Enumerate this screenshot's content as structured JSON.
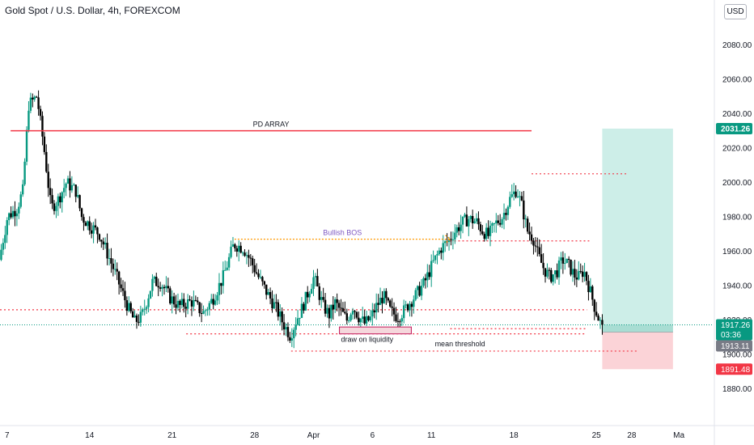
{
  "header": {
    "title": "Gold Spot / U.S. Dollar, 4h, FOREXCOM",
    "currency_button": "USD"
  },
  "colors": {
    "up": "#089981",
    "down": "#000000",
    "wick_up": "#089981",
    "wick_down": "#000000",
    "red_line": "#f23645",
    "orange": "#ff9800",
    "purple": "#7e57c2",
    "tp_fill": "#cdeee8",
    "sl_fill": "#fbd3d7",
    "green_tag": "#089981",
    "gray_tag": "#787b86",
    "red_tag": "#f23645"
  },
  "chart_data": {
    "type": "candlestick",
    "symbol": "Gold Spot / U.S. Dollar",
    "interval": "4h",
    "exchange": "FOREXCOM",
    "ylim": [
      1870,
      2090
    ],
    "y_ticks": [
      1880,
      1900,
      1920,
      1940,
      1960,
      1980,
      2000,
      2020,
      2040,
      2060,
      2080
    ],
    "y_tick_labels": [
      "1880.00",
      "1900.00",
      "1920.00",
      "1940.00",
      "1960.00",
      "1980.00",
      "2000.00",
      "2020.00",
      "2040.00",
      "2060.00",
      "2080.00"
    ],
    "x_ticks": [
      {
        "day": 7,
        "label": "7"
      },
      {
        "day": 14,
        "label": "14"
      },
      {
        "day": 21,
        "label": "21"
      },
      {
        "day": 28,
        "label": "28"
      },
      {
        "day": 33,
        "label": "Apr"
      },
      {
        "day": 38,
        "label": "6"
      },
      {
        "day": 43,
        "label": "11"
      },
      {
        "day": 50,
        "label": "18"
      },
      {
        "day": 57,
        "label": "25"
      },
      {
        "day": 60,
        "label": "28"
      },
      {
        "day": 64,
        "label": "Ma"
      }
    ],
    "xlim_days": [
      6.4,
      66.6
    ],
    "last_candle_day": 57.6,
    "candle_anchors": [
      [
        6.5,
        1955
      ],
      [
        7.2,
        1980
      ],
      [
        8.0,
        1985
      ],
      [
        8.5,
        1995
      ],
      [
        9.0,
        2045
      ],
      [
        9.7,
        2050
      ],
      [
        10.3,
        2020
      ],
      [
        10.9,
        1985
      ],
      [
        11.5,
        1990
      ],
      [
        12.2,
        2000
      ],
      [
        13.0,
        1995
      ],
      [
        13.5,
        1980
      ],
      [
        14.2,
        1975
      ],
      [
        15.0,
        1970
      ],
      [
        15.6,
        1960
      ],
      [
        16.3,
        1948
      ],
      [
        17.0,
        1935
      ],
      [
        17.5,
        1926
      ],
      [
        18.0,
        1919
      ],
      [
        18.6,
        1922
      ],
      [
        19.5,
        1942
      ],
      [
        20.2,
        1942
      ],
      [
        21.0,
        1933
      ],
      [
        21.8,
        1928
      ],
      [
        22.8,
        1931
      ],
      [
        23.8,
        1924
      ],
      [
        24.6,
        1932
      ],
      [
        25.5,
        1945
      ],
      [
        26.4,
        1964
      ],
      [
        27.2,
        1962
      ],
      [
        27.8,
        1955
      ],
      [
        28.5,
        1945
      ],
      [
        29.2,
        1936
      ],
      [
        29.9,
        1928
      ],
      [
        30.6,
        1918
      ],
      [
        31.2,
        1911
      ],
      [
        31.7,
        1920
      ],
      [
        32.2,
        1927
      ],
      [
        32.7,
        1936
      ],
      [
        33.2,
        1945
      ],
      [
        33.6,
        1936
      ],
      [
        34.0,
        1928
      ],
      [
        34.5,
        1923
      ],
      [
        35.0,
        1930
      ],
      [
        35.5,
        1925
      ],
      [
        36.0,
        1920
      ],
      [
        36.5,
        1928
      ],
      [
        37.0,
        1922
      ],
      [
        37.5,
        1918
      ],
      [
        38.0,
        1921
      ],
      [
        38.5,
        1928
      ],
      [
        39.1,
        1934
      ],
      [
        39.7,
        1925
      ],
      [
        40.3,
        1922
      ],
      [
        40.8,
        1925
      ],
      [
        41.3,
        1930
      ],
      [
        41.9,
        1935
      ],
      [
        42.6,
        1942
      ],
      [
        43.3,
        1953
      ],
      [
        44.0,
        1962
      ],
      [
        44.6,
        1966
      ],
      [
        45.1,
        1971
      ],
      [
        45.7,
        1976
      ],
      [
        46.3,
        1979
      ],
      [
        47.0,
        1977
      ],
      [
        47.5,
        1972
      ],
      [
        48.0,
        1969
      ],
      [
        48.6,
        1976
      ],
      [
        49.2,
        1980
      ],
      [
        49.8,
        1990
      ],
      [
        50.4,
        1996
      ],
      [
        50.9,
        1985
      ],
      [
        51.3,
        1972
      ],
      [
        51.8,
        1968
      ],
      [
        52.2,
        1958
      ],
      [
        52.7,
        1950
      ],
      [
        53.2,
        1945
      ],
      [
        53.8,
        1948
      ],
      [
        54.3,
        1955
      ],
      [
        54.8,
        1952
      ],
      [
        55.3,
        1946
      ],
      [
        55.7,
        1945
      ],
      [
        56.1,
        1949
      ],
      [
        56.6,
        1938
      ],
      [
        57.0,
        1928
      ],
      [
        57.4,
        1920
      ],
      [
        57.6,
        1917.26
      ]
    ],
    "annotations": {
      "pd_array": {
        "label": "PD ARRAY",
        "price": 2030,
        "x_start_day": 7.3,
        "x_end_day": 51.5
      },
      "bullish_bos": {
        "label": "Bullish BOS",
        "price": 1967,
        "x_start_day": 26.3,
        "x_end_day": 44.6
      },
      "draw_on_liquidity": {
        "label": "draw on liquidity",
        "price_top": 1916,
        "price_bottom": 1912,
        "x_start_day": 35.2,
        "x_end_day": 41.3
      },
      "mean_threshold": {
        "label": "mean threshold"
      },
      "dotted_levels": [
        {
          "price": 2005,
          "x_start_day": 51.5,
          "x_end_day": 59.7
        },
        {
          "price": 1966,
          "x_start_day": 44.6,
          "x_end_day": 56.4
        },
        {
          "price": 1926,
          "x_start_day": 6.4,
          "x_end_day": 56.2
        },
        {
          "price": 1912,
          "x_start_day": 22.2,
          "x_end_day": 56.1
        },
        {
          "price": 1915,
          "x_start_day": 44.6,
          "x_end_day": 56.1
        },
        {
          "price": 1902,
          "x_start_day": 31.1,
          "x_end_day": 60.6
        }
      ],
      "current_price_line": 1917.26
    },
    "position": {
      "type": "long",
      "entry": 1913.11,
      "target": 2031.26,
      "stop": 1891.48,
      "x_start_day": 57.5,
      "x_end_day": 63.5
    }
  },
  "price_tags": {
    "target": "2031.26",
    "current": "1917.26",
    "countdown": "03:36",
    "entry": "1913.11",
    "stop": "1891.48"
  }
}
